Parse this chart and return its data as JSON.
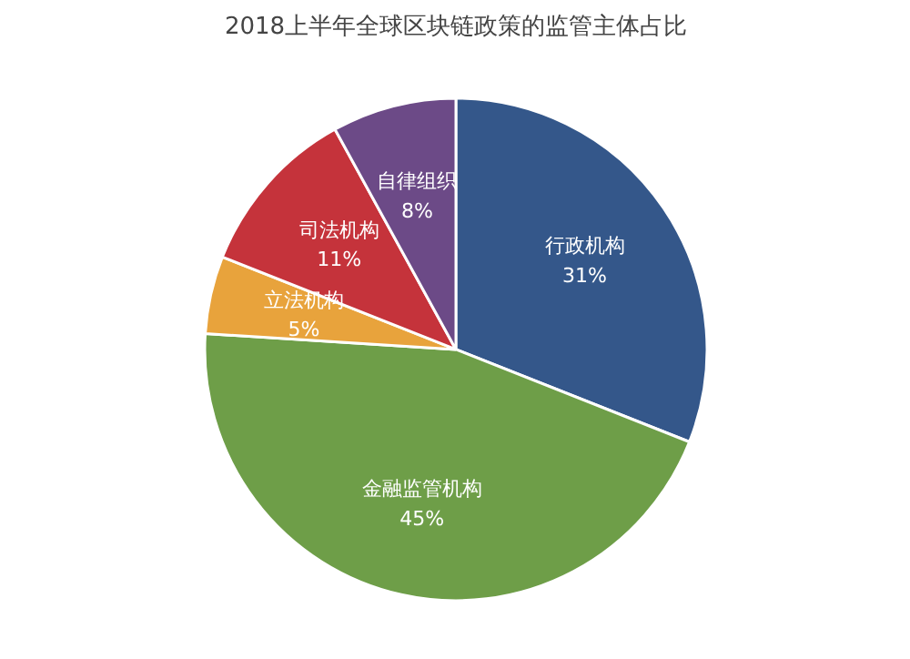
{
  "chart_data": {
    "type": "pie",
    "title": "2018上半年全球区块链政策的监管主体占比",
    "categories": [
      "行政机构",
      "金融监管机构",
      "立法机构",
      "司法机构",
      "自律组织"
    ],
    "values": [
      31,
      45,
      5,
      11,
      8
    ],
    "value_labels": [
      "31%",
      "45%",
      "5%",
      "11%",
      "8%"
    ],
    "colors": [
      "#34578a",
      "#6e9e48",
      "#e8a33c",
      "#c5333b",
      "#6c4a87"
    ]
  }
}
